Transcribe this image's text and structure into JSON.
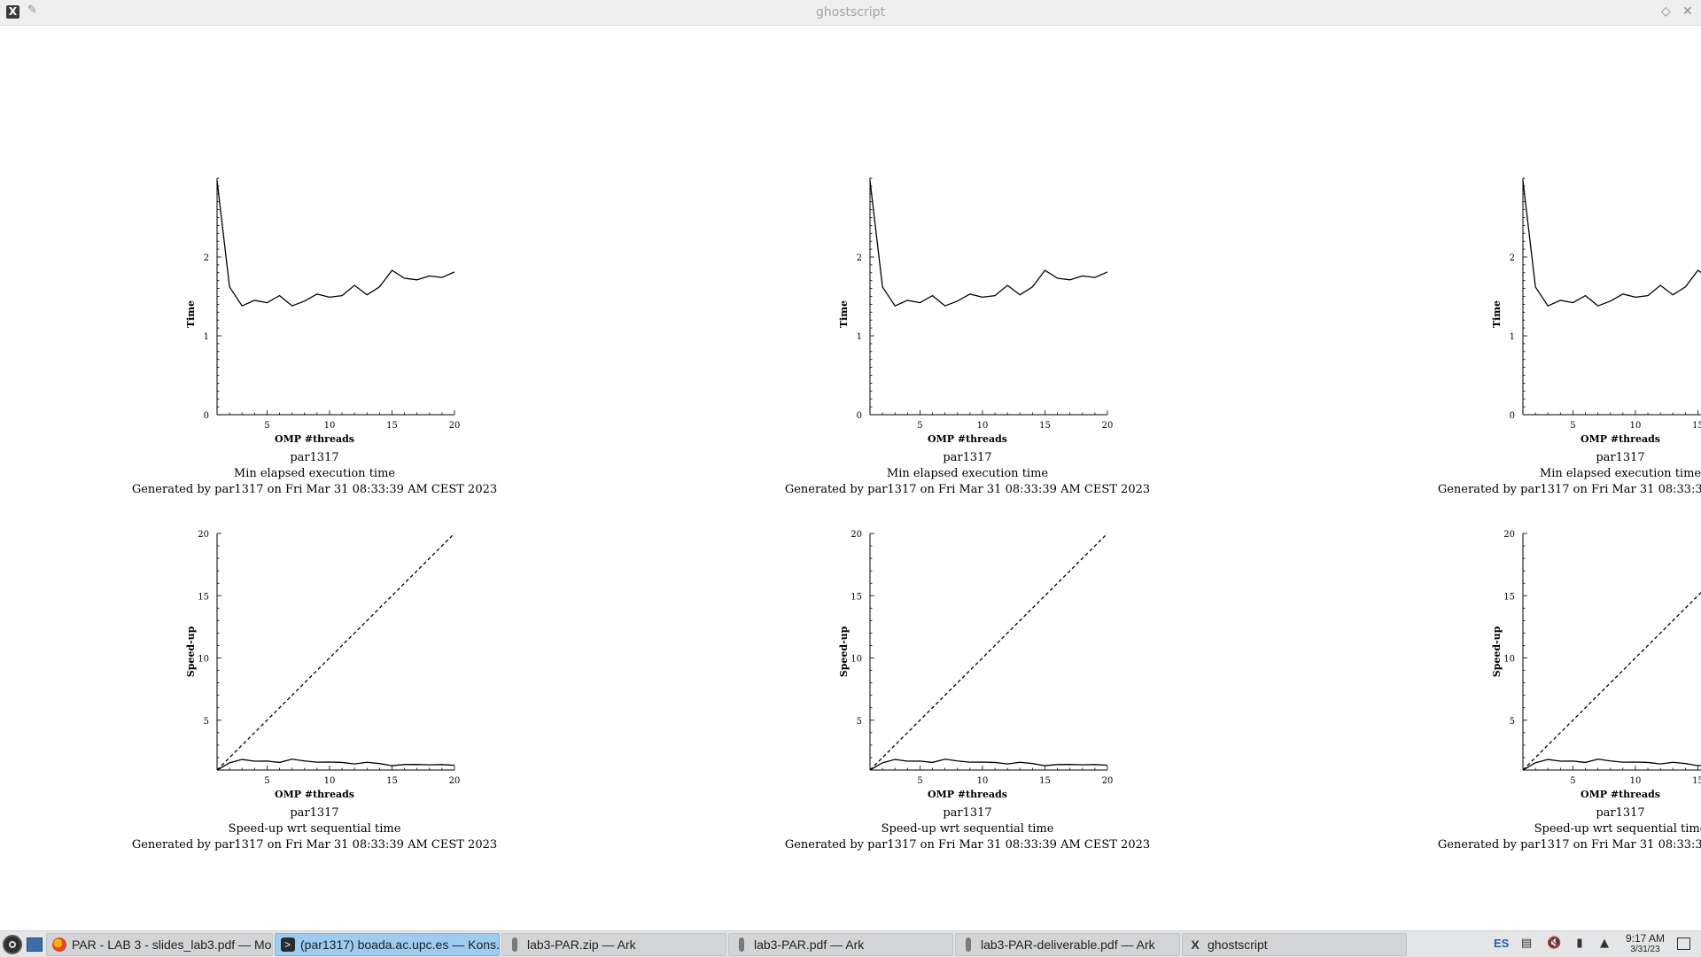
{
  "window": {
    "title": "ghostscript"
  },
  "plots": {
    "user": "par1317",
    "generated": "Generated by par1317 on Fri Mar 31 08:33:39 AM CEST 2023",
    "time_title": "Min elapsed execution time",
    "speedup_title": "Speed-up wrt sequential time",
    "xlabel": "OMP #threads",
    "time_ylabel": "Time",
    "speedup_ylabel": "Speed-up"
  },
  "chart_data": [
    {
      "type": "line",
      "title": "Min elapsed execution time",
      "xlabel": "OMP #threads",
      "ylabel": "Time",
      "x": [
        1,
        2,
        3,
        4,
        5,
        6,
        7,
        8,
        9,
        10,
        11,
        12,
        13,
        14,
        15,
        16,
        17,
        18,
        19,
        20
      ],
      "series": [
        {
          "values": [
            2.97,
            1.62,
            1.38,
            1.45,
            1.42,
            1.51,
            1.38,
            1.44,
            1.53,
            1.49,
            1.51,
            1.64,
            1.52,
            1.62,
            1.83,
            1.73,
            1.71,
            1.76,
            1.74,
            1.81
          ]
        }
      ],
      "xlim": [
        1,
        20
      ],
      "ylim": [
        0,
        3
      ],
      "xticks": [
        5,
        10,
        15,
        20
      ],
      "yticks": [
        0,
        1,
        2
      ],
      "grid": false
    },
    {
      "type": "line",
      "title": "Speed-up wrt sequential time",
      "xlabel": "OMP #threads",
      "ylabel": "Speed-up",
      "x": [
        1,
        2,
        3,
        4,
        5,
        6,
        7,
        8,
        9,
        10,
        11,
        12,
        13,
        14,
        15,
        16,
        17,
        18,
        19,
        20
      ],
      "series": [
        {
          "values": [
            1.0,
            1.58,
            1.85,
            1.71,
            1.72,
            1.61,
            1.87,
            1.73,
            1.63,
            1.64,
            1.61,
            1.49,
            1.62,
            1.52,
            1.35,
            1.44,
            1.45,
            1.42,
            1.44,
            1.38
          ]
        },
        {
          "style": "dashed",
          "values": [
            1,
            2,
            3,
            4,
            5,
            6,
            7,
            8,
            9,
            10,
            11,
            12,
            13,
            14,
            15,
            16,
            17,
            18,
            19,
            20
          ]
        }
      ],
      "xlim": [
        1,
        20
      ],
      "ylim": [
        1,
        20
      ],
      "xticks": [
        5,
        10,
        15,
        20
      ],
      "yticks": [
        5,
        10,
        15,
        20
      ],
      "grid": false
    }
  ],
  "taskbar": {
    "tasks": [
      {
        "label": "PAR - LAB 3 - slides_lab3.pdf — Mo...",
        "icon": "firefox-icon",
        "active": false
      },
      {
        "label": "(par1317) boada.ac.upc.es — Kons...",
        "icon": "konsole-icon",
        "active": true
      },
      {
        "label": "lab3-PAR.zip — Ark",
        "icon": "ark-icon",
        "active": false
      },
      {
        "label": "lab3-PAR.pdf — Ark",
        "icon": "ark-icon",
        "active": false
      },
      {
        "label": "lab3-PAR-deliverable.pdf — Ark",
        "icon": "ark-icon",
        "active": false
      },
      {
        "label": "ghostscript",
        "icon": "ghostscript-icon",
        "active": false
      }
    ],
    "tray": {
      "language": "ES",
      "icons": [
        "clipboard-icon",
        "volume-muted-icon",
        "battery-icon",
        "expand-tray-icon"
      ]
    },
    "clock": {
      "time": "9:17 AM",
      "date": "3/31/23"
    }
  }
}
